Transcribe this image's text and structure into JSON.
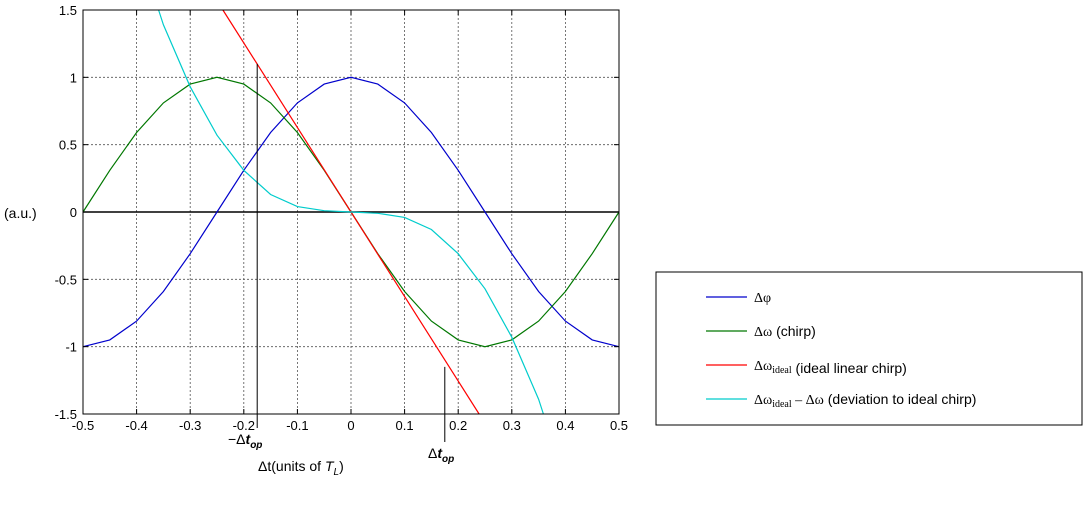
{
  "chart_data": {
    "type": "line",
    "xlabel_prefix": "Δt",
    "xlabel_main": "(units of ",
    "xlabel_var": "T",
    "xlabel_sub": "L",
    "xlabel_close": ")",
    "ylabel": "(a.u.)",
    "xlim": [
      -0.5,
      0.5
    ],
    "ylim": [
      -1.5,
      1.5
    ],
    "grid": true,
    "legend_position": "right",
    "x_ticks": [
      -0.5,
      -0.4,
      -0.3,
      -0.2,
      -0.1,
      0,
      0.1,
      0.2,
      0.3,
      0.4,
      0.5
    ],
    "x_tick_labels": [
      "-0.5",
      "-0.4",
      "-0.3",
      "-0.2",
      "-0.1",
      "0",
      "0.1",
      "0.2",
      "0.3",
      "0.4",
      "0.5"
    ],
    "y_ticks": [
      -1.5,
      -1,
      -0.5,
      0,
      0.5,
      1,
      1.5
    ],
    "y_tick_labels": [
      "-1.5",
      "-1",
      "-0.5",
      "0",
      "0.5",
      "1",
      "1.5"
    ],
    "annotations": {
      "neg_top": {
        "x": -0.175,
        "prefix": "−Δ",
        "var": "t",
        "sub": "op"
      },
      "pos_top": {
        "x": 0.175,
        "prefix": "Δ",
        "var": "t",
        "sub": "op"
      }
    },
    "series": [
      {
        "key": "dphi",
        "color": "#0000cc",
        "x": [
          -0.5,
          -0.45,
          -0.4,
          -0.35,
          -0.3,
          -0.25,
          -0.2,
          -0.15,
          -0.1,
          -0.05,
          0,
          0.05,
          0.1,
          0.15,
          0.2,
          0.25,
          0.3,
          0.35,
          0.4,
          0.45,
          0.5
        ],
        "y": [
          -1,
          -0.95,
          -0.81,
          -0.59,
          -0.31,
          0,
          0.31,
          0.59,
          0.81,
          0.95,
          1,
          0.95,
          0.81,
          0.59,
          0.31,
          0,
          -0.31,
          -0.59,
          -0.81,
          -0.95,
          -1
        ]
      },
      {
        "key": "domega",
        "color": "#007700",
        "x": [
          -0.5,
          -0.45,
          -0.4,
          -0.35,
          -0.3,
          -0.25,
          -0.2,
          -0.15,
          -0.1,
          -0.05,
          0,
          0.05,
          0.1,
          0.15,
          0.2,
          0.25,
          0.3,
          0.35,
          0.4,
          0.45,
          0.5
        ],
        "y": [
          0,
          0.31,
          0.59,
          0.81,
          0.95,
          1,
          0.95,
          0.81,
          0.59,
          0.31,
          0,
          -0.31,
          -0.59,
          -0.81,
          -0.95,
          -1,
          -0.95,
          -0.81,
          -0.59,
          -0.31,
          0
        ]
      },
      {
        "key": "dideal",
        "color": "#ff0000",
        "x": [
          -0.239,
          0.239
        ],
        "y": [
          1.5,
          -1.5
        ]
      },
      {
        "key": "deviation",
        "color": "#00cccc",
        "x": [
          -0.359,
          -0.35,
          -0.3,
          -0.25,
          -0.2,
          -0.15,
          -0.1,
          -0.05,
          0,
          0.05,
          0.1,
          0.15,
          0.2,
          0.25,
          0.3,
          0.35,
          0.359
        ],
        "y": [
          1.5,
          1.39,
          0.93,
          0.57,
          0.31,
          0.13,
          0.04,
          0.01,
          0,
          -0.01,
          -0.04,
          -0.13,
          -0.31,
          -0.57,
          -0.93,
          -1.39,
          -1.5
        ]
      }
    ],
    "legend": [
      {
        "series": "dphi",
        "color": "#0000cc",
        "sym": "Δφ",
        "sym_sub": "",
        "sym_tail": "",
        "text": ""
      },
      {
        "series": "domega",
        "color": "#007700",
        "sym": "Δω",
        "sym_sub": "",
        "sym_tail": "",
        "text": " (chirp)"
      },
      {
        "series": "dideal",
        "color": "#ff0000",
        "sym": "Δω",
        "sym_sub": "ideal",
        "sym_tail": "",
        "text": " (ideal linear chirp)"
      },
      {
        "series": "deviation",
        "color": "#00cccc",
        "sym": "Δω",
        "sym_sub": "ideal",
        "sym_tail": " – Δω",
        "text": " (deviation to ideal chirp)"
      }
    ]
  }
}
